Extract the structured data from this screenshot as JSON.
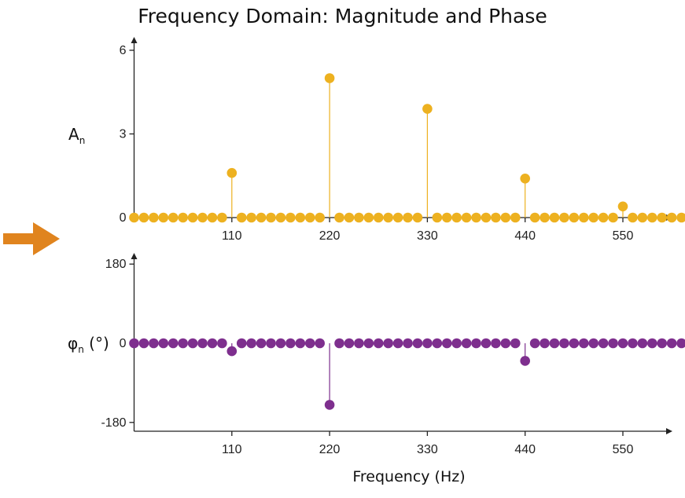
{
  "chart_data": [
    {
      "type": "stem",
      "title": "Frequency Domain: Magnitude and Phase",
      "ylabel": "An",
      "ylabel_main": "A",
      "ylabel_sub": "n",
      "xlabel": "",
      "x_ticks": [
        110,
        220,
        330,
        440,
        550
      ],
      "y_ticks": [
        0,
        3,
        6
      ],
      "xlim": [
        0,
        605
      ],
      "ylim": [
        0,
        6.3
      ],
      "color": "#EDB120",
      "sample_step": 11,
      "n_samples": 63,
      "nonzero": [
        {
          "x": 110,
          "y": 1.6
        },
        {
          "x": 220,
          "y": 5.0
        },
        {
          "x": 330,
          "y": 3.9
        },
        {
          "x": 440,
          "y": 1.4
        },
        {
          "x": 550,
          "y": 0.4
        }
      ]
    },
    {
      "type": "stem",
      "ylabel": "φn (°)",
      "ylabel_main": "φ",
      "ylabel_sub": "n",
      "ylabel_unit": "(°)",
      "xlabel": "Frequency (Hz)",
      "x_ticks": [
        110,
        220,
        330,
        440,
        550
      ],
      "y_ticks": [
        -180,
        0,
        180
      ],
      "xlim": [
        0,
        605
      ],
      "ylim": [
        -200,
        200
      ],
      "color": "#7E2F8E",
      "sample_step": 11,
      "n_samples": 63,
      "nonzero": [
        {
          "x": 110,
          "y": -18
        },
        {
          "x": 220,
          "y": -140
        },
        {
          "x": 440,
          "y": -40
        }
      ]
    }
  ],
  "arrow_color": "#E0841E"
}
